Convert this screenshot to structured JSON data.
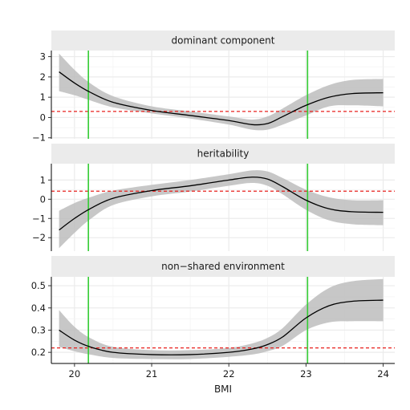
{
  "chart_data": {
    "type": "line",
    "xlabel": "BMI",
    "xlim": [
      19.7,
      24.15
    ],
    "x_ticks": [
      20,
      21,
      22,
      23,
      24
    ],
    "x_tick_labels": [
      "20",
      "21",
      "22",
      "23",
      "24"
    ],
    "vertical_lines": {
      "x": [
        20.18,
        23.02
      ],
      "color": "#33cc33"
    },
    "grid": true,
    "panels": [
      {
        "strip_label": "dominant component",
        "ylim": [
          -1.05,
          3.3
        ],
        "y_ticks": [
          -1,
          0,
          1,
          2,
          3
        ],
        "y_tick_labels": [
          "−1",
          "0",
          "1",
          "2",
          "3"
        ],
        "hline": 0.3,
        "x": [
          19.8,
          20.0,
          20.2,
          20.5,
          21.0,
          21.5,
          22.0,
          22.3,
          22.5,
          22.7,
          23.0,
          23.3,
          23.6,
          24.0
        ],
        "y": [
          2.25,
          1.7,
          1.25,
          0.75,
          0.35,
          0.1,
          -0.15,
          -0.35,
          -0.3,
          0.05,
          0.6,
          1.0,
          1.18,
          1.22
        ],
        "lower": [
          1.3,
          1.1,
          0.85,
          0.5,
          0.2,
          -0.05,
          -0.35,
          -0.6,
          -0.6,
          -0.35,
          0.1,
          0.55,
          0.6,
          0.55
        ],
        "upper": [
          3.15,
          2.35,
          1.7,
          1.05,
          0.55,
          0.3,
          0.05,
          -0.1,
          0.05,
          0.45,
          1.1,
          1.6,
          1.85,
          1.9
        ]
      },
      {
        "strip_label": "heritability",
        "ylim": [
          -2.7,
          1.85
        ],
        "y_ticks": [
          -2,
          -1,
          0,
          1
        ],
        "y_tick_labels": [
          "−2",
          "−1",
          "0",
          "1"
        ],
        "hline": 0.42,
        "x": [
          19.8,
          20.0,
          20.2,
          20.5,
          21.0,
          21.5,
          22.0,
          22.3,
          22.5,
          22.7,
          23.0,
          23.3,
          23.6,
          24.0
        ],
        "y": [
          -1.6,
          -1.0,
          -0.5,
          0.05,
          0.45,
          0.7,
          1.0,
          1.15,
          1.05,
          0.65,
          -0.05,
          -0.5,
          -0.65,
          -0.68
        ],
        "lower": [
          -2.55,
          -1.75,
          -1.05,
          -0.3,
          0.15,
          0.4,
          0.7,
          0.85,
          0.7,
          0.25,
          -0.55,
          -1.1,
          -1.3,
          -1.35
        ],
        "upper": [
          -0.6,
          -0.2,
          0.1,
          0.45,
          0.75,
          1.0,
          1.3,
          1.5,
          1.45,
          1.1,
          0.5,
          0.1,
          -0.05,
          -0.05
        ]
      },
      {
        "strip_label": "non−shared environment",
        "ylim": [
          0.15,
          0.54
        ],
        "y_ticks": [
          0.2,
          0.3,
          0.4,
          0.5
        ],
        "y_tick_labels": [
          "0.2",
          "0.3",
          "0.4",
          "0.5"
        ],
        "hline": 0.22,
        "x": [
          19.8,
          20.0,
          20.2,
          20.5,
          21.0,
          21.5,
          22.0,
          22.3,
          22.5,
          22.7,
          23.0,
          23.3,
          23.6,
          24.0
        ],
        "y": [
          0.3,
          0.255,
          0.225,
          0.2,
          0.19,
          0.19,
          0.2,
          0.215,
          0.235,
          0.27,
          0.355,
          0.41,
          0.43,
          0.435
        ],
        "lower": [
          0.225,
          0.205,
          0.19,
          0.175,
          0.17,
          0.17,
          0.18,
          0.19,
          0.205,
          0.23,
          0.3,
          0.335,
          0.34,
          0.34
        ],
        "upper": [
          0.39,
          0.315,
          0.265,
          0.225,
          0.21,
          0.21,
          0.22,
          0.24,
          0.265,
          0.31,
          0.415,
          0.49,
          0.52,
          0.53
        ]
      }
    ]
  }
}
